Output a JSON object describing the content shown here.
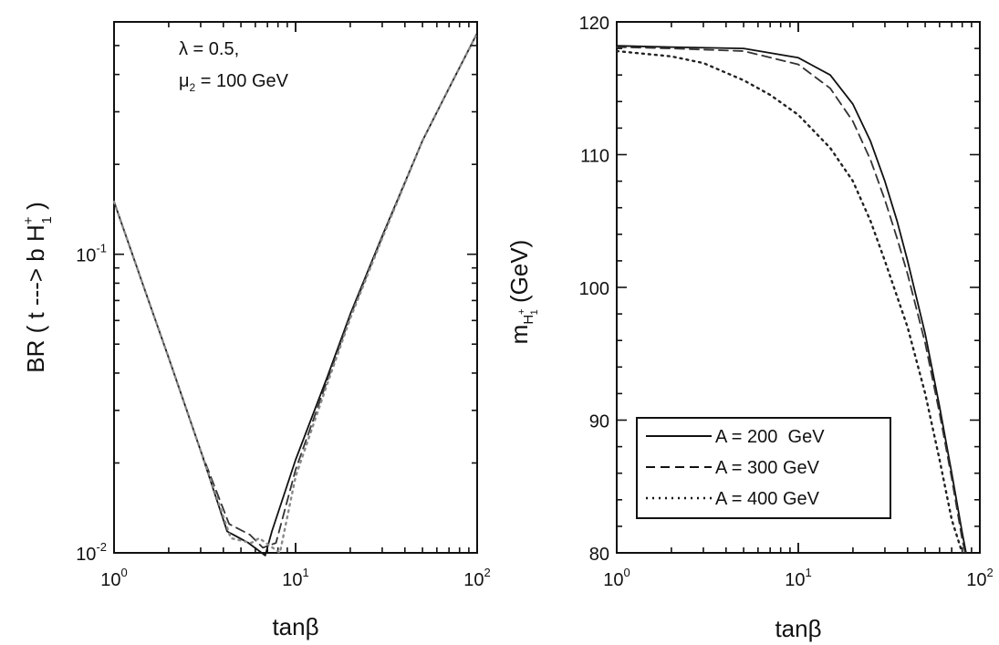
{
  "chart_data": [
    {
      "type": "line",
      "xscale": "log",
      "yscale": "log",
      "xlim": [
        1,
        100
      ],
      "ylim": [
        0.01,
        0.6
      ],
      "xlabel": "tanβ",
      "ylabel_parts": {
        "prefix": "BR ( t ---> b H",
        "sup": "+",
        "sub": "1",
        "suffix": " )"
      },
      "x_ticks": [
        {
          "value": 1,
          "base": "10",
          "exp": "0"
        },
        {
          "value": 10,
          "base": "10",
          "exp": "1"
        },
        {
          "value": 100,
          "base": "10",
          "exp": "2"
        }
      ],
      "y_ticks": [
        {
          "value": 0.01,
          "base": "10",
          "exp": "-2"
        },
        {
          "value": 0.1,
          "base": "10",
          "exp": "-1"
        }
      ],
      "annotations": [
        {
          "text": "λ = 0.5,"
        },
        {
          "prefix": "μ",
          "sub": "2",
          "suffix": " = 100 GeV"
        }
      ],
      "series": [
        {
          "style": "solid",
          "color": "#111111",
          "x": [
            1,
            1.5,
            2,
            3,
            4.2,
            5.5,
            6.8,
            7.4,
            10,
            15,
            20,
            30,
            50,
            70,
            100
          ],
          "y": [
            0.15,
            0.074,
            0.045,
            0.022,
            0.0118,
            0.0108,
            0.0098,
            0.0118,
            0.0205,
            0.039,
            0.063,
            0.115,
            0.24,
            0.36,
            0.55
          ]
        },
        {
          "style": "dash",
          "color": "#333333",
          "x": [
            1,
            1.5,
            2,
            3,
            4.3,
            5.6,
            6.6,
            7.8,
            10,
            15,
            20,
            30,
            50,
            70,
            100
          ],
          "y": [
            0.15,
            0.074,
            0.045,
            0.022,
            0.0125,
            0.0115,
            0.0104,
            0.0108,
            0.019,
            0.038,
            0.062,
            0.114,
            0.24,
            0.36,
            0.55
          ]
        },
        {
          "style": "dot",
          "color": "#888888",
          "x": [
            1,
            1.5,
            2,
            3,
            4.4,
            5.7,
            6.3,
            8.2,
            10,
            15,
            20,
            30,
            50,
            70,
            100
          ],
          "y": [
            0.15,
            0.074,
            0.045,
            0.022,
            0.0112,
            0.0108,
            0.0112,
            0.01,
            0.018,
            0.037,
            0.061,
            0.113,
            0.24,
            0.36,
            0.55
          ]
        }
      ]
    },
    {
      "type": "line",
      "xscale": "log",
      "yscale": "linear",
      "xlim": [
        1,
        100
      ],
      "ylim": [
        80,
        120
      ],
      "xlabel": "tanβ",
      "ylabel_parts": {
        "prefix": "m",
        "sub": "H",
        "subsup": "+",
        "subsub": "1",
        "suffix": "  (GeV)"
      },
      "x_ticks": [
        {
          "value": 1,
          "base": "10",
          "exp": "0"
        },
        {
          "value": 10,
          "base": "10",
          "exp": "1"
        },
        {
          "value": 100,
          "base": "10",
          "exp": "2"
        }
      ],
      "y_ticks": [
        {
          "value": 80,
          "label": "80"
        },
        {
          "value": 90,
          "label": "90"
        },
        {
          "value": 100,
          "label": "100"
        },
        {
          "value": 110,
          "label": "110"
        },
        {
          "value": 120,
          "label": "120"
        }
      ],
      "legend_position": "bottom-left",
      "series": [
        {
          "name": "A = 200  GeV",
          "style": "solid",
          "color": "#111111",
          "x": [
            1,
            2,
            5,
            10,
            15,
            20,
            25,
            30,
            35,
            40,
            50,
            60,
            70,
            80,
            84
          ],
          "y": [
            118.2,
            118.1,
            118.0,
            117.3,
            116.0,
            113.8,
            111.0,
            108.0,
            105.0,
            102.0,
            96.5,
            91.0,
            86.0,
            81.5,
            80
          ]
        },
        {
          "name": "A = 300 GeV",
          "style": "dash",
          "color": "#333333",
          "x": [
            1,
            2,
            5,
            10,
            15,
            20,
            25,
            30,
            35,
            40,
            50,
            60,
            70,
            80,
            83
          ],
          "y": [
            118.1,
            118.0,
            117.8,
            116.8,
            115.0,
            112.5,
            109.6,
            106.6,
            103.7,
            101.0,
            95.8,
            90.5,
            85.6,
            81.0,
            80
          ]
        },
        {
          "name": "A = 400 GeV",
          "style": "dot",
          "color": "#222222",
          "x": [
            1,
            2,
            3,
            5,
            7,
            10,
            15,
            20,
            25,
            30,
            40,
            50,
            60,
            70,
            80
          ],
          "y": [
            117.8,
            117.4,
            116.9,
            115.6,
            114.5,
            113.0,
            110.5,
            108.0,
            105.0,
            102.0,
            97.0,
            92.0,
            87.0,
            82.5,
            80
          ]
        }
      ]
    }
  ]
}
